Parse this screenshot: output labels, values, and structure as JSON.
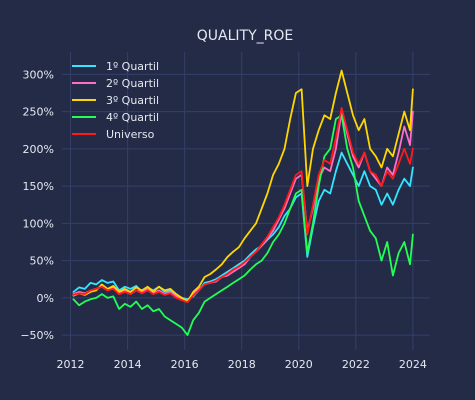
{
  "chart_data": {
    "type": "line",
    "title": "QUALITY_ROE",
    "xlabel": "",
    "ylabel": "",
    "x_range": [
      2011.7,
      2024.6
    ],
    "ylim": [
      -70,
      330
    ],
    "x_ticks": [
      2012,
      2014,
      2016,
      2018,
      2020,
      2022,
      2024
    ],
    "x_tick_labels": [
      "2012",
      "2014",
      "2016",
      "2018",
      "2020",
      "2022",
      "2024"
    ],
    "y_ticks": [
      -50,
      0,
      50,
      100,
      150,
      200,
      250,
      300
    ],
    "y_tick_labels": [
      "−50%",
      "0%",
      "50%",
      "100%",
      "150%",
      "200%",
      "250%",
      "300%"
    ],
    "grid": true,
    "legend_position": "top-left",
    "background_color": "#232b47",
    "grid_color": "#34406a",
    "series": [
      {
        "name": "1º Quartil",
        "color": "#33e6ff",
        "points": [
          [
            2012.1,
            8
          ],
          [
            2012.3,
            14
          ],
          [
            2012.5,
            12
          ],
          [
            2012.7,
            20
          ],
          [
            2012.9,
            18
          ],
          [
            2013.1,
            24
          ],
          [
            2013.3,
            20
          ],
          [
            2013.5,
            22
          ],
          [
            2013.7,
            10
          ],
          [
            2013.9,
            15
          ],
          [
            2014.1,
            12
          ],
          [
            2014.3,
            16
          ],
          [
            2014.5,
            8
          ],
          [
            2014.7,
            14
          ],
          [
            2014.9,
            10
          ],
          [
            2015.1,
            15
          ],
          [
            2015.3,
            8
          ],
          [
            2015.5,
            10
          ],
          [
            2015.7,
            5
          ],
          [
            2015.9,
            0
          ],
          [
            2016.1,
            -2
          ],
          [
            2016.3,
            2
          ],
          [
            2016.5,
            10
          ],
          [
            2016.7,
            20
          ],
          [
            2016.9,
            22
          ],
          [
            2017.1,
            25
          ],
          [
            2017.3,
            30
          ],
          [
            2017.5,
            35
          ],
          [
            2017.7,
            40
          ],
          [
            2017.9,
            45
          ],
          [
            2018.1,
            50
          ],
          [
            2018.3,
            58
          ],
          [
            2018.5,
            65
          ],
          [
            2018.7,
            70
          ],
          [
            2018.9,
            78
          ],
          [
            2019.1,
            85
          ],
          [
            2019.3,
            95
          ],
          [
            2019.5,
            110
          ],
          [
            2019.7,
            120
          ],
          [
            2019.9,
            135
          ],
          [
            2020.1,
            140
          ],
          [
            2020.3,
            55
          ],
          [
            2020.5,
            95
          ],
          [
            2020.7,
            130
          ],
          [
            2020.9,
            145
          ],
          [
            2021.1,
            140
          ],
          [
            2021.3,
            170
          ],
          [
            2021.5,
            195
          ],
          [
            2021.7,
            180
          ],
          [
            2021.9,
            165
          ],
          [
            2022.1,
            150
          ],
          [
            2022.3,
            170
          ],
          [
            2022.5,
            150
          ],
          [
            2022.7,
            145
          ],
          [
            2022.9,
            125
          ],
          [
            2023.1,
            140
          ],
          [
            2023.3,
            125
          ],
          [
            2023.5,
            145
          ],
          [
            2023.7,
            160
          ],
          [
            2023.9,
            150
          ],
          [
            2024.0,
            175
          ]
        ]
      },
      {
        "name": "2º Quartil",
        "color": "#ff6ec7",
        "points": [
          [
            2012.1,
            5
          ],
          [
            2012.3,
            8
          ],
          [
            2012.5,
            6
          ],
          [
            2012.7,
            10
          ],
          [
            2012.9,
            12
          ],
          [
            2013.1,
            15
          ],
          [
            2013.3,
            10
          ],
          [
            2013.5,
            14
          ],
          [
            2013.7,
            5
          ],
          [
            2013.9,
            10
          ],
          [
            2014.1,
            5
          ],
          [
            2014.3,
            10
          ],
          [
            2014.5,
            8
          ],
          [
            2014.7,
            12
          ],
          [
            2014.9,
            6
          ],
          [
            2015.1,
            10
          ],
          [
            2015.3,
            5
          ],
          [
            2015.5,
            8
          ],
          [
            2015.7,
            2
          ],
          [
            2015.9,
            -2
          ],
          [
            2016.1,
            -5
          ],
          [
            2016.3,
            5
          ],
          [
            2016.5,
            12
          ],
          [
            2016.7,
            18
          ],
          [
            2016.9,
            20
          ],
          [
            2017.1,
            22
          ],
          [
            2017.3,
            28
          ],
          [
            2017.5,
            30
          ],
          [
            2017.7,
            35
          ],
          [
            2017.9,
            40
          ],
          [
            2018.1,
            45
          ],
          [
            2018.3,
            55
          ],
          [
            2018.5,
            62
          ],
          [
            2018.7,
            70
          ],
          [
            2018.9,
            80
          ],
          [
            2019.1,
            90
          ],
          [
            2019.3,
            105
          ],
          [
            2019.5,
            120
          ],
          [
            2019.7,
            140
          ],
          [
            2019.9,
            160
          ],
          [
            2020.1,
            165
          ],
          [
            2020.3,
            90
          ],
          [
            2020.5,
            120
          ],
          [
            2020.7,
            160
          ],
          [
            2020.9,
            175
          ],
          [
            2021.1,
            170
          ],
          [
            2021.3,
            200
          ],
          [
            2021.5,
            250
          ],
          [
            2021.7,
            220
          ],
          [
            2021.9,
            190
          ],
          [
            2022.1,
            175
          ],
          [
            2022.3,
            195
          ],
          [
            2022.5,
            170
          ],
          [
            2022.7,
            160
          ],
          [
            2022.9,
            150
          ],
          [
            2023.1,
            175
          ],
          [
            2023.3,
            165
          ],
          [
            2023.5,
            195
          ],
          [
            2023.7,
            230
          ],
          [
            2023.9,
            205
          ],
          [
            2024.0,
            250
          ]
        ]
      },
      {
        "name": "3º Quartil",
        "color": "#ffd700",
        "points": [
          [
            2012.1,
            3
          ],
          [
            2012.3,
            6
          ],
          [
            2012.5,
            4
          ],
          [
            2012.7,
            8
          ],
          [
            2012.9,
            10
          ],
          [
            2013.1,
            18
          ],
          [
            2013.3,
            12
          ],
          [
            2013.5,
            16
          ],
          [
            2013.7,
            8
          ],
          [
            2013.9,
            12
          ],
          [
            2014.1,
            8
          ],
          [
            2014.3,
            14
          ],
          [
            2014.5,
            10
          ],
          [
            2014.7,
            15
          ],
          [
            2014.9,
            8
          ],
          [
            2015.1,
            15
          ],
          [
            2015.3,
            10
          ],
          [
            2015.5,
            12
          ],
          [
            2015.7,
            5
          ],
          [
            2015.9,
            0
          ],
          [
            2016.1,
            -5
          ],
          [
            2016.3,
            8
          ],
          [
            2016.5,
            15
          ],
          [
            2016.7,
            28
          ],
          [
            2016.9,
            32
          ],
          [
            2017.1,
            38
          ],
          [
            2017.3,
            45
          ],
          [
            2017.5,
            55
          ],
          [
            2017.7,
            62
          ],
          [
            2017.9,
            68
          ],
          [
            2018.1,
            80
          ],
          [
            2018.3,
            90
          ],
          [
            2018.5,
            100
          ],
          [
            2018.7,
            120
          ],
          [
            2018.9,
            140
          ],
          [
            2019.1,
            165
          ],
          [
            2019.3,
            180
          ],
          [
            2019.5,
            200
          ],
          [
            2019.7,
            240
          ],
          [
            2019.9,
            275
          ],
          [
            2020.1,
            280
          ],
          [
            2020.3,
            150
          ],
          [
            2020.5,
            200
          ],
          [
            2020.7,
            225
          ],
          [
            2020.9,
            245
          ],
          [
            2021.1,
            240
          ],
          [
            2021.3,
            275
          ],
          [
            2021.5,
            305
          ],
          [
            2021.7,
            275
          ],
          [
            2021.9,
            245
          ],
          [
            2022.1,
            225
          ],
          [
            2022.3,
            240
          ],
          [
            2022.5,
            200
          ],
          [
            2022.7,
            190
          ],
          [
            2022.9,
            175
          ],
          [
            2023.1,
            200
          ],
          [
            2023.3,
            190
          ],
          [
            2023.5,
            220
          ],
          [
            2023.7,
            250
          ],
          [
            2023.9,
            225
          ],
          [
            2024.0,
            280
          ]
        ]
      },
      {
        "name": "4º Quartil",
        "color": "#22ff55",
        "points": [
          [
            2012.1,
            -2
          ],
          [
            2012.3,
            -10
          ],
          [
            2012.5,
            -5
          ],
          [
            2012.7,
            -2
          ],
          [
            2012.9,
            0
          ],
          [
            2013.1,
            5
          ],
          [
            2013.3,
            0
          ],
          [
            2013.5,
            2
          ],
          [
            2013.7,
            -15
          ],
          [
            2013.9,
            -8
          ],
          [
            2014.1,
            -12
          ],
          [
            2014.3,
            -5
          ],
          [
            2014.5,
            -15
          ],
          [
            2014.7,
            -10
          ],
          [
            2014.9,
            -18
          ],
          [
            2015.1,
            -15
          ],
          [
            2015.3,
            -25
          ],
          [
            2015.5,
            -30
          ],
          [
            2015.7,
            -35
          ],
          [
            2015.9,
            -40
          ],
          [
            2016.1,
            -50
          ],
          [
            2016.3,
            -30
          ],
          [
            2016.5,
            -20
          ],
          [
            2016.7,
            -5
          ],
          [
            2016.9,
            0
          ],
          [
            2017.1,
            5
          ],
          [
            2017.3,
            10
          ],
          [
            2017.5,
            15
          ],
          [
            2017.7,
            20
          ],
          [
            2017.9,
            25
          ],
          [
            2018.1,
            30
          ],
          [
            2018.3,
            38
          ],
          [
            2018.5,
            45
          ],
          [
            2018.7,
            50
          ],
          [
            2018.9,
            60
          ],
          [
            2019.1,
            75
          ],
          [
            2019.3,
            85
          ],
          [
            2019.5,
            100
          ],
          [
            2019.7,
            120
          ],
          [
            2019.9,
            140
          ],
          [
            2020.1,
            145
          ],
          [
            2020.3,
            60
          ],
          [
            2020.5,
            100
          ],
          [
            2020.7,
            150
          ],
          [
            2020.9,
            190
          ],
          [
            2021.1,
            200
          ],
          [
            2021.3,
            240
          ],
          [
            2021.5,
            245
          ],
          [
            2021.7,
            200
          ],
          [
            2021.9,
            175
          ],
          [
            2022.1,
            130
          ],
          [
            2022.3,
            110
          ],
          [
            2022.5,
            90
          ],
          [
            2022.7,
            80
          ],
          [
            2022.9,
            50
          ],
          [
            2023.1,
            75
          ],
          [
            2023.3,
            30
          ],
          [
            2023.5,
            60
          ],
          [
            2023.7,
            75
          ],
          [
            2023.9,
            45
          ],
          [
            2024.0,
            85
          ]
        ]
      },
      {
        "name": "Universo",
        "color": "#ff1a1a",
        "points": [
          [
            2012.1,
            4
          ],
          [
            2012.3,
            6
          ],
          [
            2012.5,
            5
          ],
          [
            2012.7,
            10
          ],
          [
            2012.9,
            12
          ],
          [
            2013.1,
            15
          ],
          [
            2013.3,
            10
          ],
          [
            2013.5,
            12
          ],
          [
            2013.7,
            5
          ],
          [
            2013.9,
            8
          ],
          [
            2014.1,
            5
          ],
          [
            2014.3,
            10
          ],
          [
            2014.5,
            6
          ],
          [
            2014.7,
            10
          ],
          [
            2014.9,
            5
          ],
          [
            2015.1,
            8
          ],
          [
            2015.3,
            4
          ],
          [
            2015.5,
            6
          ],
          [
            2015.7,
            0
          ],
          [
            2015.9,
            -3
          ],
          [
            2016.1,
            -6
          ],
          [
            2016.3,
            3
          ],
          [
            2016.5,
            10
          ],
          [
            2016.7,
            18
          ],
          [
            2016.9,
            20
          ],
          [
            2017.1,
            23
          ],
          [
            2017.3,
            28
          ],
          [
            2017.5,
            32
          ],
          [
            2017.7,
            38
          ],
          [
            2017.9,
            42
          ],
          [
            2018.1,
            48
          ],
          [
            2018.3,
            55
          ],
          [
            2018.5,
            62
          ],
          [
            2018.7,
            72
          ],
          [
            2018.9,
            82
          ],
          [
            2019.1,
            95
          ],
          [
            2019.3,
            108
          ],
          [
            2019.5,
            125
          ],
          [
            2019.7,
            145
          ],
          [
            2019.9,
            165
          ],
          [
            2020.1,
            170
          ],
          [
            2020.3,
            85
          ],
          [
            2020.5,
            125
          ],
          [
            2020.7,
            165
          ],
          [
            2020.9,
            185
          ],
          [
            2021.1,
            180
          ],
          [
            2021.3,
            215
          ],
          [
            2021.5,
            255
          ],
          [
            2021.7,
            225
          ],
          [
            2021.9,
            195
          ],
          [
            2022.1,
            180
          ],
          [
            2022.3,
            195
          ],
          [
            2022.5,
            170
          ],
          [
            2022.7,
            165
          ],
          [
            2022.9,
            150
          ],
          [
            2023.1,
            170
          ],
          [
            2023.3,
            160
          ],
          [
            2023.5,
            180
          ],
          [
            2023.7,
            200
          ],
          [
            2023.9,
            180
          ],
          [
            2024.0,
            200
          ]
        ]
      }
    ]
  }
}
